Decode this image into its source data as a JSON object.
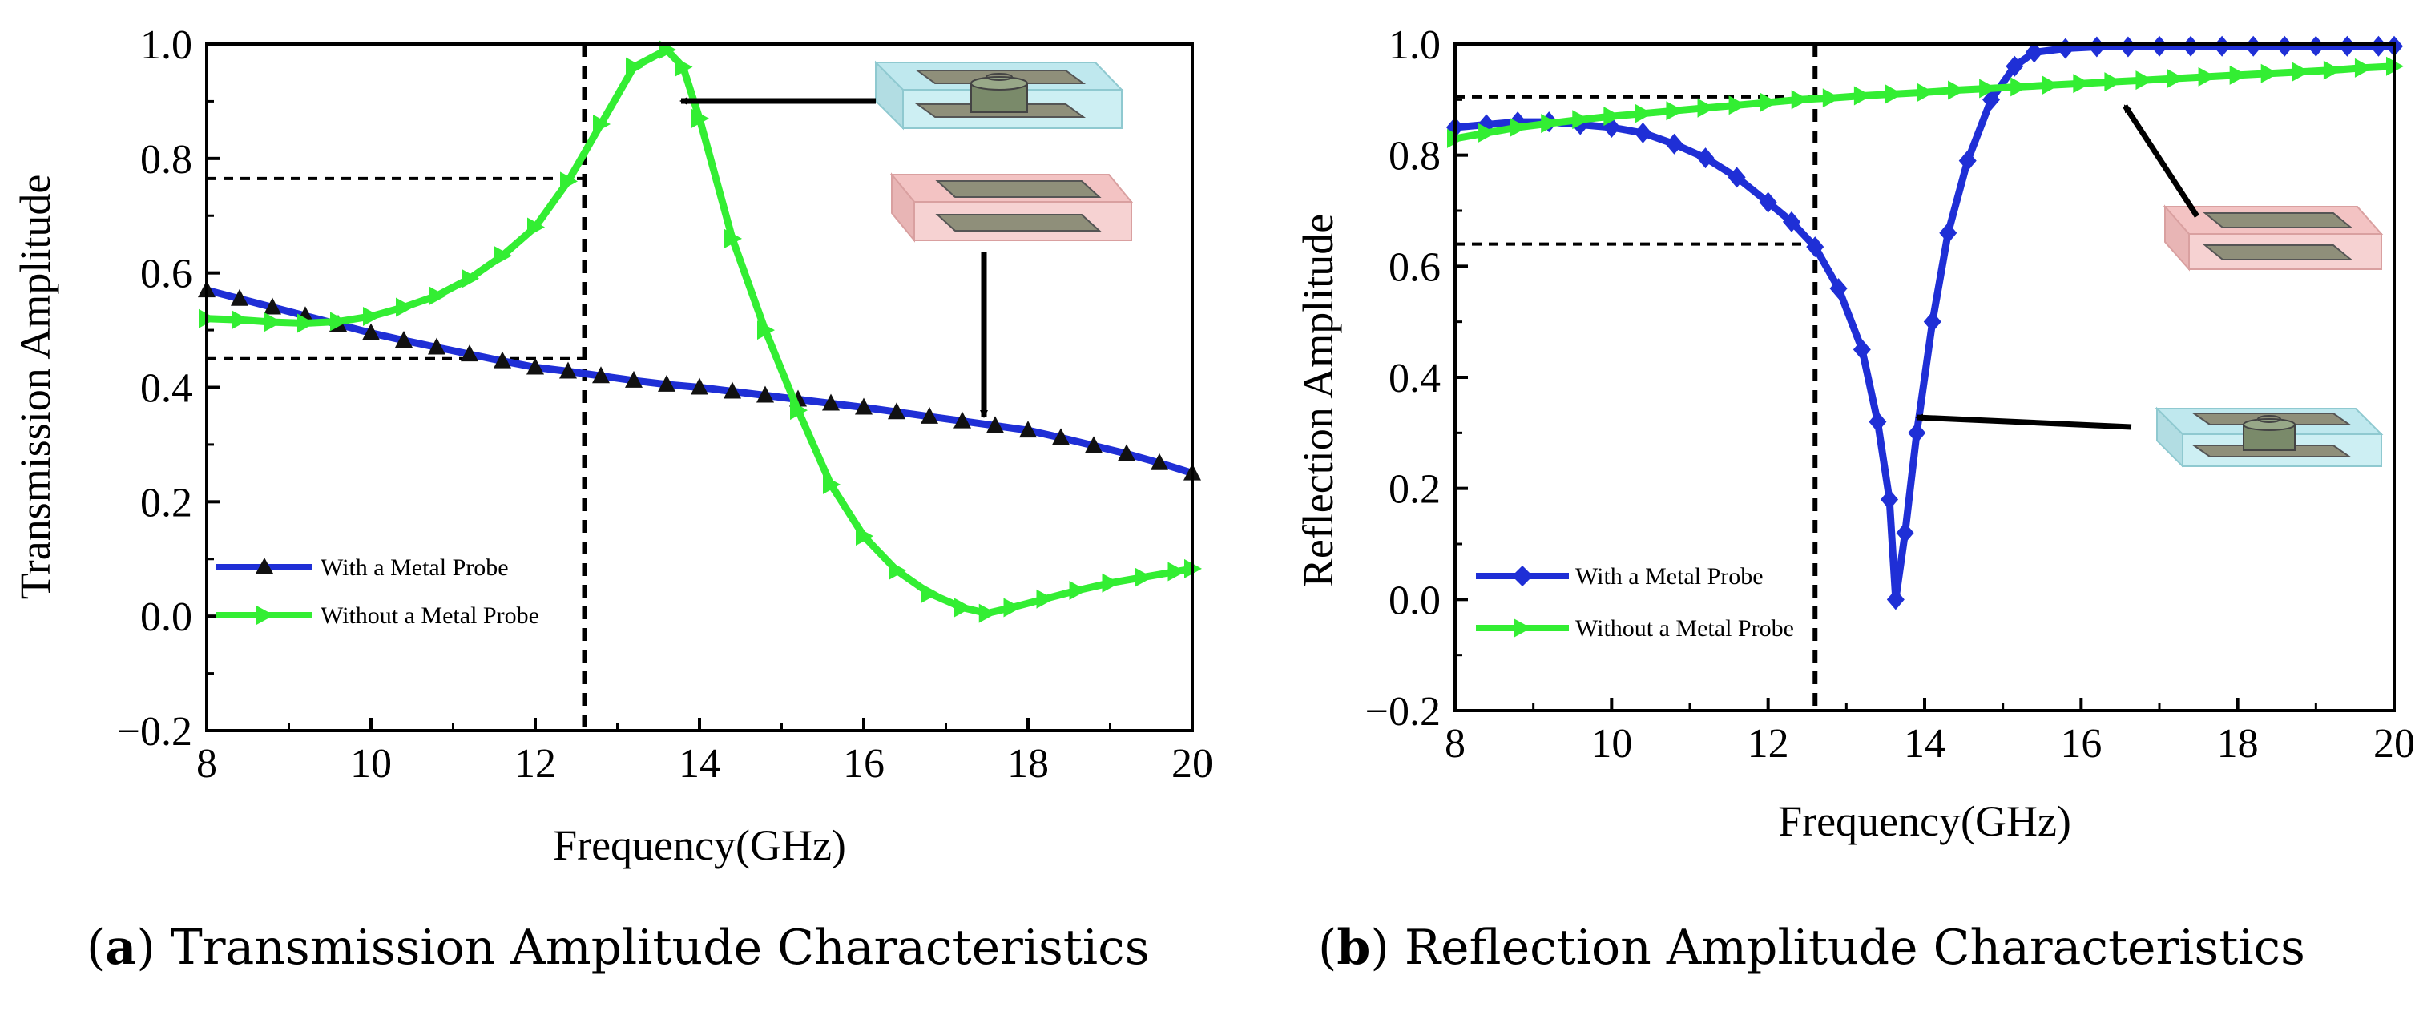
{
  "captions": [
    {
      "letter": "a",
      "text": "Transmission Amplitude Characteristics"
    },
    {
      "letter": "b",
      "text": "Reflection Amplitude Characteristics"
    }
  ],
  "chart_data": [
    {
      "type": "line",
      "xlabel": "Frequency(GHz)",
      "ylabel": "Transmission Amplitude",
      "xlim": [
        8,
        20
      ],
      "ylim": [
        -0.2,
        1.0
      ],
      "xticks": [
        8,
        10,
        12,
        14,
        16,
        18,
        20
      ],
      "yticks": [
        -0.2,
        0.0,
        0.2,
        0.4,
        0.6,
        0.8,
        1.0
      ],
      "ytick_labels": [
        "−0.2",
        "0.0",
        "0.2",
        "0.4",
        "0.6",
        "0.8",
        "1.0"
      ],
      "grid": false,
      "legend_position": "bottom-left",
      "series": [
        {
          "name": "With a Metal Probe",
          "color": "#1f2fd6",
          "marker": "triangle-up",
          "marker_color": "#111111",
          "x": [
            8.0,
            8.4,
            8.8,
            9.2,
            9.6,
            10.0,
            10.4,
            10.8,
            11.2,
            11.6,
            12.0,
            12.4,
            12.8,
            13.2,
            13.6,
            14.0,
            14.4,
            14.8,
            15.2,
            15.6,
            16.0,
            16.4,
            16.8,
            17.2,
            17.6,
            18.0,
            18.4,
            18.8,
            19.2,
            19.6,
            20.0
          ],
          "y": [
            0.57,
            0.555,
            0.54,
            0.525,
            0.51,
            0.495,
            0.482,
            0.47,
            0.458,
            0.446,
            0.435,
            0.428,
            0.42,
            0.412,
            0.405,
            0.4,
            0.393,
            0.386,
            0.379,
            0.372,
            0.365,
            0.357,
            0.349,
            0.341,
            0.333,
            0.325,
            0.312,
            0.298,
            0.284,
            0.268,
            0.25
          ]
        },
        {
          "name": "Without a Metal Probe",
          "color": "#33ee33",
          "marker": "triangle-right",
          "marker_color": "#33ee33",
          "x": [
            8.0,
            8.4,
            8.8,
            9.2,
            9.6,
            10.0,
            10.4,
            10.8,
            11.2,
            11.6,
            12.0,
            12.4,
            12.8,
            13.2,
            13.6,
            13.8,
            14.0,
            14.4,
            14.8,
            15.2,
            15.6,
            16.0,
            16.4,
            16.8,
            17.2,
            17.5,
            17.8,
            18.2,
            18.6,
            19.0,
            19.4,
            19.8,
            20.0
          ],
          "y": [
            0.52,
            0.518,
            0.514,
            0.512,
            0.515,
            0.524,
            0.54,
            0.56,
            0.59,
            0.63,
            0.68,
            0.76,
            0.86,
            0.96,
            0.99,
            0.96,
            0.87,
            0.66,
            0.5,
            0.36,
            0.23,
            0.14,
            0.08,
            0.04,
            0.015,
            0.005,
            0.015,
            0.03,
            0.045,
            0.058,
            0.068,
            0.078,
            0.083
          ]
        }
      ],
      "reference_lines": [
        {
          "orientation": "vertical",
          "x": 12.6
        },
        {
          "orientation": "horizontal",
          "y": 0.765,
          "x_end": 12.6
        },
        {
          "orientation": "horizontal",
          "y": 0.45,
          "x_end": 12.6
        }
      ]
    },
    {
      "type": "line",
      "xlabel": "Frequency(GHz)",
      "ylabel": "Reflection Amplitude",
      "xlim": [
        8,
        20
      ],
      "ylim": [
        -0.2,
        1.0
      ],
      "xticks": [
        8,
        10,
        12,
        14,
        16,
        18,
        20
      ],
      "yticks": [
        -0.2,
        0.0,
        0.2,
        0.4,
        0.6,
        0.8,
        1.0
      ],
      "ytick_labels": [
        "−0.2",
        "0.0",
        "0.2",
        "0.4",
        "0.6",
        "0.8",
        "1.0"
      ],
      "grid": false,
      "legend_position": "bottom-left",
      "series": [
        {
          "name": "With a Metal Probe",
          "color": "#1f2fd6",
          "marker": "diamond",
          "marker_color": "#1f2fd6",
          "x": [
            8.0,
            8.4,
            8.8,
            9.2,
            9.6,
            10.0,
            10.4,
            10.8,
            11.2,
            11.6,
            12.0,
            12.3,
            12.6,
            12.9,
            13.2,
            13.4,
            13.55,
            13.63,
            13.75,
            13.9,
            14.1,
            14.3,
            14.55,
            14.85,
            15.15,
            15.4,
            15.8,
            16.2,
            16.6,
            17.0,
            17.4,
            17.8,
            18.2,
            18.6,
            19.0,
            19.4,
            19.8,
            20.0
          ],
          "y": [
            0.85,
            0.855,
            0.86,
            0.86,
            0.855,
            0.85,
            0.84,
            0.82,
            0.795,
            0.76,
            0.715,
            0.68,
            0.635,
            0.56,
            0.45,
            0.32,
            0.18,
            0.0,
            0.12,
            0.3,
            0.5,
            0.66,
            0.79,
            0.9,
            0.96,
            0.985,
            0.992,
            0.995,
            0.995,
            0.996,
            0.996,
            0.996,
            0.996,
            0.996,
            0.996,
            0.996,
            0.996,
            0.996
          ]
        },
        {
          "name": "Without a Metal Probe",
          "color": "#33ee33",
          "marker": "triangle-right",
          "marker_color": "#33ee33",
          "x": [
            8.0,
            8.4,
            8.8,
            9.2,
            9.6,
            10.0,
            10.4,
            10.8,
            11.2,
            11.6,
            12.0,
            12.4,
            12.8,
            13.2,
            13.6,
            14.0,
            14.4,
            14.8,
            15.2,
            15.6,
            16.0,
            16.4,
            16.8,
            17.2,
            17.6,
            18.0,
            18.4,
            18.8,
            19.2,
            19.6,
            20.0
          ],
          "y": [
            0.83,
            0.84,
            0.85,
            0.857,
            0.864,
            0.87,
            0.875,
            0.88,
            0.885,
            0.89,
            0.895,
            0.9,
            0.903,
            0.907,
            0.91,
            0.913,
            0.917,
            0.92,
            0.923,
            0.926,
            0.929,
            0.932,
            0.935,
            0.938,
            0.941,
            0.944,
            0.947,
            0.95,
            0.953,
            0.957,
            0.96
          ]
        }
      ],
      "reference_lines": [
        {
          "orientation": "vertical",
          "x": 12.6
        },
        {
          "orientation": "horizontal",
          "y": 0.905,
          "x_end": 12.6
        },
        {
          "orientation": "horizontal",
          "y": 0.64,
          "x_end": 12.6
        }
      ]
    }
  ]
}
